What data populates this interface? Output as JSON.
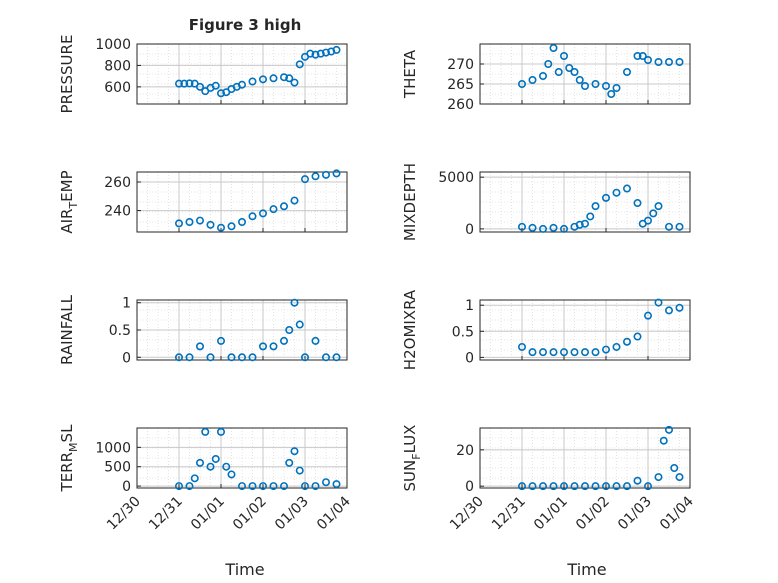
{
  "figure": {
    "title": "Figure 3 high",
    "xlabel": "Time"
  },
  "x_tick_labels": [
    "12/30",
    "12/31",
    "01/01",
    "01/02",
    "01/03",
    "01/04"
  ],
  "chart_data": [
    {
      "type": "scatter",
      "title": "Figure 3 high",
      "ylabel": "PRESSURE",
      "xlabel": "",
      "xlim": [
        "12/30",
        "01/04"
      ],
      "ylim": [
        440,
        1000
      ],
      "yticks": [
        600,
        800,
        1000
      ],
      "grid": true,
      "marker_color": "#0072BD",
      "x": [
        "12/31 00:00",
        "12/31 03:00",
        "12/31 06:00",
        "12/31 09:00",
        "12/31 12:00",
        "12/31 15:00",
        "12/31 18:00",
        "12/31 21:00",
        "01/01 00:00",
        "01/01 03:00",
        "01/01 06:00",
        "01/01 09:00",
        "01/01 12:00",
        "01/01 18:00",
        "01/02 00:00",
        "01/02 06:00",
        "01/02 12:00",
        "01/02 15:00",
        "01/02 18:00",
        "01/02 21:00",
        "01/03 00:00",
        "01/03 03:00",
        "01/03 06:00",
        "01/03 09:00",
        "01/03 12:00",
        "01/03 15:00",
        "01/03 18:00"
      ],
      "y": [
        630,
        630,
        632,
        630,
        600,
        560,
        590,
        610,
        540,
        550,
        580,
        600,
        620,
        650,
        670,
        680,
        690,
        680,
        640,
        810,
        880,
        910,
        900,
        910,
        920,
        930,
        945
      ]
    },
    {
      "type": "scatter",
      "title": "",
      "ylabel": "THETA",
      "xlabel": "",
      "xlim": [
        "12/30",
        "01/04"
      ],
      "ylim": [
        260,
        275
      ],
      "yticks": [
        260,
        265,
        270
      ],
      "grid": true,
      "marker_color": "#0072BD",
      "x": [
        "12/31 00:00",
        "12/31 06:00",
        "12/31 12:00",
        "12/31 15:00",
        "12/31 18:00",
        "12/31 21:00",
        "01/01 00:00",
        "01/01 03:00",
        "01/01 06:00",
        "01/01 09:00",
        "01/01 12:00",
        "01/01 18:00",
        "01/02 00:00",
        "01/02 03:00",
        "01/02 06:00",
        "01/02 12:00",
        "01/02 18:00",
        "01/02 21:00",
        "01/03 00:00",
        "01/03 06:00",
        "01/03 12:00",
        "01/03 18:00"
      ],
      "y": [
        265,
        266,
        267,
        270,
        274,
        268,
        272,
        269,
        268,
        266,
        264.5,
        265,
        264.5,
        262.5,
        264,
        268,
        272,
        272,
        271,
        270.5,
        270.5,
        270.5
      ]
    },
    {
      "type": "scatter",
      "title": "",
      "ylabel": "AIR_TEMP",
      "xlabel": "",
      "xlim": [
        "12/30",
        "01/04"
      ],
      "ylim": [
        225,
        267
      ],
      "yticks": [
        240,
        260
      ],
      "grid": true,
      "marker_color": "#0072BD",
      "x": [
        "12/31 00:00",
        "12/31 06:00",
        "12/31 12:00",
        "12/31 18:00",
        "01/01 00:00",
        "01/01 06:00",
        "01/01 12:00",
        "01/01 18:00",
        "01/02 00:00",
        "01/02 06:00",
        "01/02 12:00",
        "01/02 18:00",
        "01/03 00:00",
        "01/03 06:00",
        "01/03 12:00",
        "01/03 18:00"
      ],
      "y": [
        231,
        232,
        233,
        230,
        228,
        229,
        232,
        236,
        238,
        241,
        243,
        247,
        262,
        264,
        265,
        266
      ]
    },
    {
      "type": "scatter",
      "title": "",
      "ylabel": "MIXDEPTH",
      "xlabel": "",
      "xlim": [
        "12/30",
        "01/04"
      ],
      "ylim": [
        -300,
        5500
      ],
      "yticks": [
        0,
        5000
      ],
      "grid": true,
      "marker_color": "#0072BD",
      "x": [
        "12/31 00:00",
        "12/31 06:00",
        "12/31 12:00",
        "12/31 18:00",
        "01/01 00:00",
        "01/01 06:00",
        "01/01 09:00",
        "01/01 12:00",
        "01/01 15:00",
        "01/01 18:00",
        "01/02 00:00",
        "01/02 06:00",
        "01/02 12:00",
        "01/02 18:00",
        "01/02 21:00",
        "01/03 00:00",
        "01/03 03:00",
        "01/03 06:00",
        "01/03 12:00",
        "01/03 18:00"
      ],
      "y": [
        200,
        100,
        0,
        100,
        0,
        200,
        400,
        500,
        1200,
        2200,
        3000,
        3500,
        3900,
        2500,
        500,
        800,
        1500,
        2200,
        200,
        200
      ]
    },
    {
      "type": "scatter",
      "title": "",
      "ylabel": "RAINFALL",
      "xlabel": "",
      "xlim": [
        "12/30",
        "01/04"
      ],
      "ylim": [
        -0.05,
        1.05
      ],
      "yticks": [
        0,
        0.5,
        1
      ],
      "grid": true,
      "marker_color": "#0072BD",
      "x": [
        "12/31 00:00",
        "12/31 06:00",
        "12/31 12:00",
        "12/31 18:00",
        "01/01 00:00",
        "01/01 06:00",
        "01/01 12:00",
        "01/01 18:00",
        "01/02 00:00",
        "01/02 06:00",
        "01/02 12:00",
        "01/02 15:00",
        "01/02 18:00",
        "01/02 21:00",
        "01/03 00:00",
        "01/03 06:00",
        "01/03 12:00",
        "01/03 18:00"
      ],
      "y": [
        0,
        0,
        0.2,
        0,
        0.3,
        0,
        0,
        0,
        0.2,
        0.2,
        0.3,
        0.5,
        1.0,
        0.6,
        0,
        0.3,
        0,
        0
      ]
    },
    {
      "type": "scatter",
      "title": "",
      "ylabel": "H2OMIXRA",
      "xlabel": "",
      "xlim": [
        "12/30",
        "01/04"
      ],
      "ylim": [
        -0.05,
        1.1
      ],
      "yticks": [
        0,
        0.5,
        1
      ],
      "grid": true,
      "marker_color": "#0072BD",
      "x": [
        "12/31 00:00",
        "12/31 06:00",
        "12/31 12:00",
        "12/31 18:00",
        "01/01 00:00",
        "01/01 06:00",
        "01/01 12:00",
        "01/01 18:00",
        "01/02 00:00",
        "01/02 06:00",
        "01/02 12:00",
        "01/02 18:00",
        "01/03 00:00",
        "01/03 06:00",
        "01/03 12:00",
        "01/03 18:00"
      ],
      "y": [
        0.2,
        0.1,
        0.1,
        0.1,
        0.1,
        0.1,
        0.1,
        0.1,
        0.15,
        0.2,
        0.3,
        0.4,
        0.8,
        1.05,
        0.9,
        0.95
      ]
    },
    {
      "type": "scatter",
      "title": "",
      "ylabel": "TERR_MSL",
      "xlabel": "",
      "xlim": [
        "12/30",
        "01/04"
      ],
      "ylim": [
        -50,
        1500
      ],
      "yticks": [
        0,
        500,
        1000
      ],
      "grid": true,
      "marker_color": "#0072BD",
      "x": [
        "12/31 00:00",
        "12/31 06:00",
        "12/31 09:00",
        "12/31 12:00",
        "12/31 15:00",
        "12/31 18:00",
        "12/31 21:00",
        "01/01 00:00",
        "01/01 03:00",
        "01/01 06:00",
        "01/01 12:00",
        "01/01 18:00",
        "01/02 00:00",
        "01/02 06:00",
        "01/02 12:00",
        "01/02 15:00",
        "01/02 18:00",
        "01/02 21:00",
        "01/03 00:00",
        "01/03 06:00",
        "01/03 12:00",
        "01/03 18:00"
      ],
      "y": [
        0,
        0,
        200,
        600,
        1400,
        500,
        700,
        1400,
        500,
        300,
        0,
        0,
        0,
        0,
        0,
        600,
        900,
        400,
        0,
        0,
        100,
        50
      ]
    },
    {
      "type": "scatter",
      "title": "",
      "ylabel": "SUN_FLUX",
      "xlabel": "",
      "xlim": [
        "12/30",
        "01/04"
      ],
      "ylim": [
        -1,
        32
      ],
      "yticks": [
        0,
        20
      ],
      "grid": true,
      "marker_color": "#0072BD",
      "x": [
        "12/31 00:00",
        "12/31 06:00",
        "12/31 12:00",
        "12/31 18:00",
        "01/01 00:00",
        "01/01 06:00",
        "01/01 12:00",
        "01/01 18:00",
        "01/02 00:00",
        "01/02 06:00",
        "01/02 12:00",
        "01/02 18:00",
        "01/03 00:00",
        "01/03 06:00",
        "01/03 09:00",
        "01/03 12:00",
        "01/03 15:00",
        "01/03 18:00"
      ],
      "y": [
        0,
        0,
        0,
        0,
        0,
        0,
        0,
        0,
        0,
        0,
        0,
        3,
        0,
        5,
        25,
        31,
        10,
        5
      ]
    }
  ]
}
